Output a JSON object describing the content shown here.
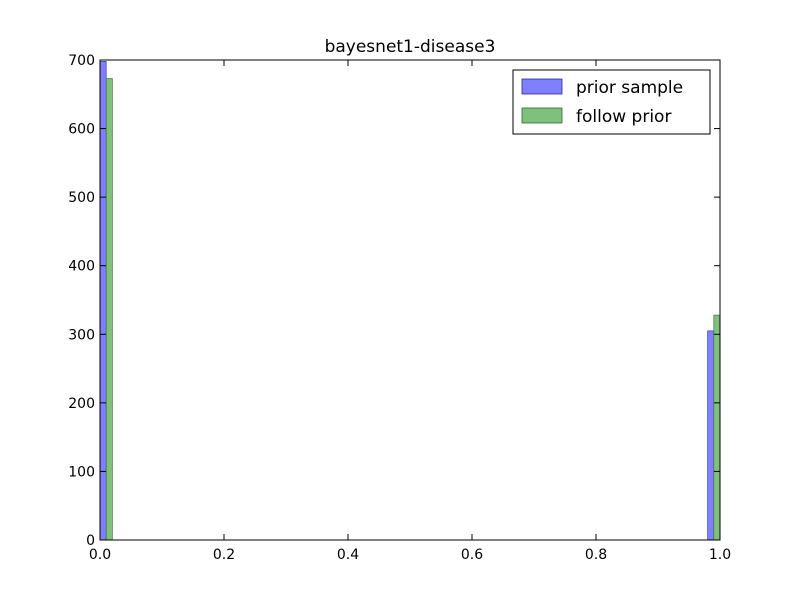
{
  "chart_data": {
    "type": "bar",
    "title": "bayesnet1-disease3",
    "xlabel": "",
    "ylabel": "",
    "xlim": [
      0.0,
      1.0
    ],
    "ylim": [
      0,
      700
    ],
    "x_ticks": [
      "0.0",
      "0.2",
      "0.4",
      "0.6",
      "0.8",
      "1.0"
    ],
    "y_ticks": [
      "0",
      "100",
      "200",
      "300",
      "400",
      "500",
      "600",
      "700"
    ],
    "grid": false,
    "legend_position": "top-right",
    "series": [
      {
        "name": "prior sample",
        "color": "#7f7fff",
        "edge_color": "#2b2b8f",
        "points": [
          {
            "x": 0.0,
            "value": 698
          },
          {
            "x": 1.0,
            "value": 305
          }
        ]
      },
      {
        "name": "follow prior",
        "color": "#7fc07f",
        "edge_color": "#2b6b2b",
        "points": [
          {
            "x": 0.0,
            "value": 673
          },
          {
            "x": 1.0,
            "value": 328
          }
        ]
      }
    ]
  }
}
